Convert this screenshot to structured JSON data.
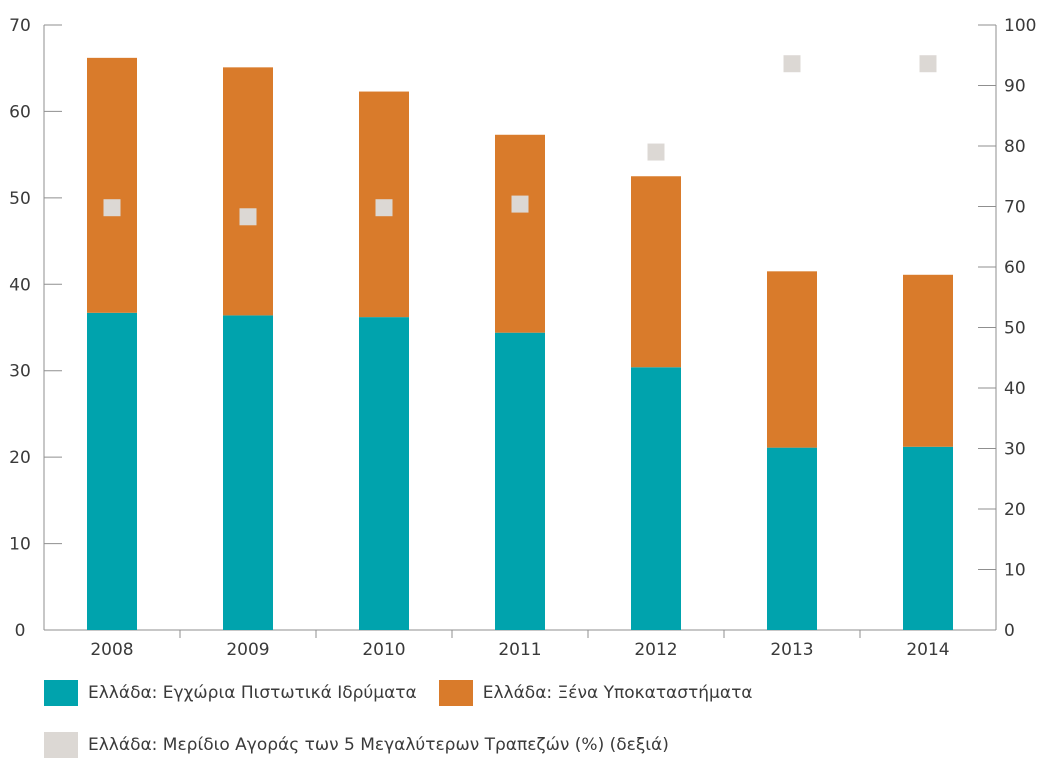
{
  "chart_data": {
    "type": "bar",
    "stacked": true,
    "categories": [
      "2008",
      "2009",
      "2010",
      "2011",
      "2012",
      "2013",
      "2014"
    ],
    "series": [
      {
        "name": "Ελλάδα: Εγχώρια Πιστωτικά Ιδρύματα",
        "axis": "left",
        "color": "#00a3ad",
        "values": [
          36.7,
          36.4,
          36.2,
          34.4,
          30.4,
          21.1,
          21.2
        ]
      },
      {
        "name": "Ελλάδα: Ξένα Υποκαταστήματα",
        "axis": "left",
        "color": "#d97b2b",
        "values": [
          29.5,
          28.7,
          26.1,
          22.9,
          22.1,
          20.4,
          19.9
        ]
      },
      {
        "name": "Ελλάδα: Μερίδιο Αγοράς των 5 Μεγαλύτερων Τραπεζών (%) (δεξιά)",
        "axis": "right",
        "type": "scatter",
        "marker": "square",
        "color": "#dcd8d4",
        "values": [
          69.8,
          68.3,
          69.8,
          70.4,
          79.0,
          93.6,
          93.6
        ]
      }
    ],
    "y_left": {
      "range": [
        0,
        70
      ],
      "ticks": [
        "0",
        "10",
        "20",
        "30",
        "40",
        "50",
        "60",
        "70"
      ]
    },
    "y_right": {
      "range": [
        0,
        100
      ],
      "ticks": [
        "0",
        "10",
        "20",
        "30",
        "40",
        "50",
        "60",
        "70",
        "80",
        "90",
        "100"
      ]
    },
    "title": "",
    "xlabel": "",
    "ylabel": "",
    "grid": false,
    "legend_position": "bottom"
  }
}
